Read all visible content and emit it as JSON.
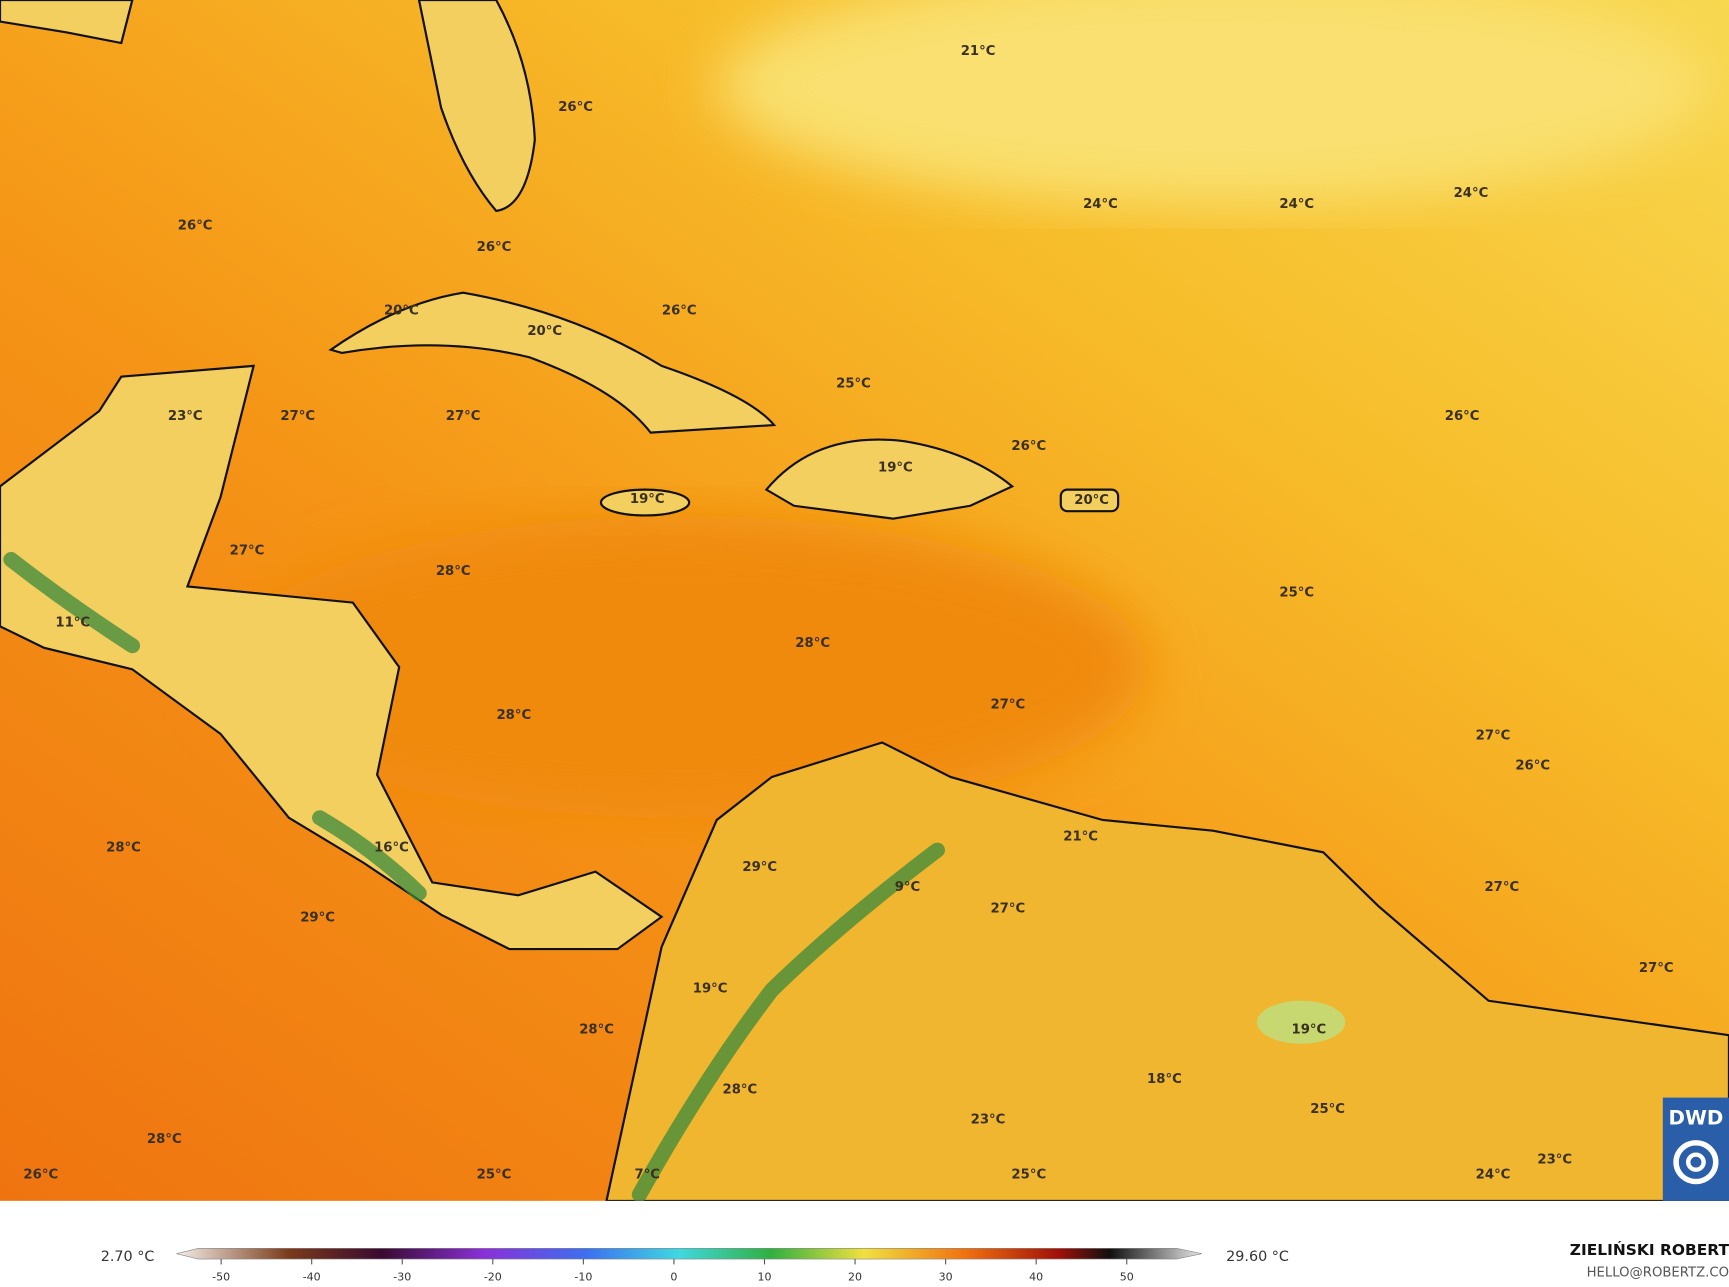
{
  "map": {
    "labels": [
      "21°C",
      "26°C",
      "26°C",
      "26°C",
      "24°C",
      "24°C",
      "24°C",
      "26°C",
      "20°C",
      "20°C",
      "25°C",
      "23°C",
      "27°C",
      "27°C",
      "26°C",
      "26°C",
      "19°C",
      "19°C",
      "20°C",
      "27°C",
      "28°C",
      "11°C",
      "25°C",
      "28°C",
      "28°C",
      "27°C",
      "27°C",
      "26°C",
      "28°C",
      "16°C",
      "29°C",
      "21°C",
      "9°C",
      "27°C",
      "27°C",
      "29°C",
      "19°C",
      "28°C",
      "19°C",
      "18°C",
      "27°C",
      "28°C",
      "25°C",
      "23°C",
      "28°C",
      "7°C",
      "25°C",
      "26°C",
      "24°C",
      "23°C",
      "25°C"
    ]
  },
  "colorbar": {
    "min_label": "2.70 °C",
    "max_label": "29.60 °C",
    "lim": [
      -52.5,
      55.5
    ],
    "ticks": [
      -50,
      -40,
      -30,
      -20,
      -10,
      0,
      10,
      20,
      30,
      40,
      50
    ]
  },
  "credit": {
    "name": "ZIELIŃSKI ROBERT",
    "email": "HELLO@ROBERTZ.CO"
  },
  "logo": "DWD"
}
